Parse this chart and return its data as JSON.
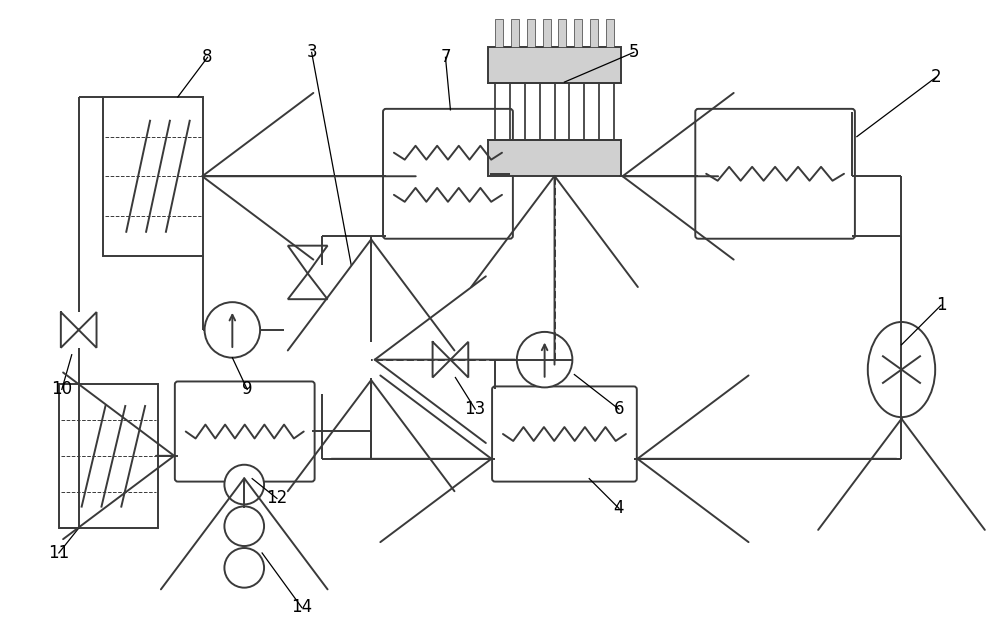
{
  "fig_width": 10.0,
  "fig_height": 6.41,
  "bg_color": "#ffffff",
  "lc": "#3a3a3a",
  "lw": 1.4,
  "arrow_hw": 0.013,
  "arrow_hl": 0.018
}
